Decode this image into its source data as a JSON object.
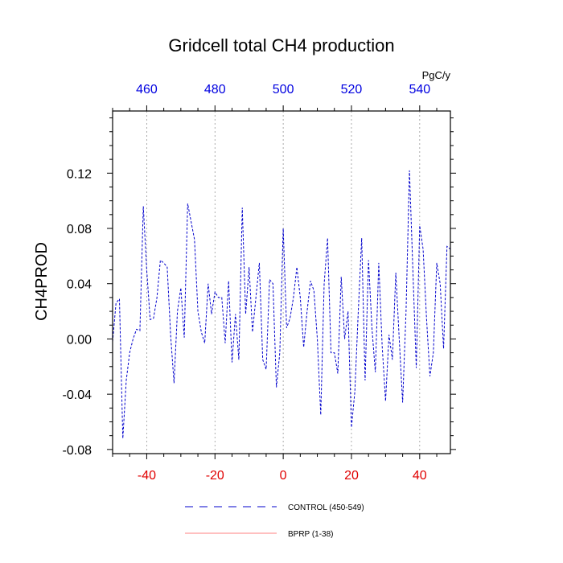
{
  "chart_data": {
    "type": "line",
    "title": "Gridcell total CH4 production",
    "ylabel": "CH4PROD",
    "xlabel": "",
    "top_axis_unit": "PgC/y",
    "xlim": [
      -50,
      49
    ],
    "ylim": [
      -0.083,
      0.165
    ],
    "bottom_ticks": [
      -40,
      -20,
      0,
      20,
      40
    ],
    "top_ticks": [
      460,
      480,
      500,
      520,
      540
    ],
    "top_tick_positions": [
      -40,
      -20,
      0,
      20,
      40
    ],
    "y_ticks": [
      -0.08,
      -0.04,
      0.0,
      0.04,
      0.08,
      0.12
    ],
    "y_tick_labels": [
      "-0.08",
      "-0.04",
      "0.00",
      "0.04",
      "0.08",
      "0.12"
    ],
    "grid": "vertical-dotted",
    "legend_placement": "bottom-center",
    "colors": {
      "bottom_ticks": "#e00000",
      "top_ticks": "#0000e0",
      "control": "#0000cc",
      "bprp": "#ff8080"
    },
    "series": [
      {
        "name": "CONTROL (450-549)",
        "style": "dashed",
        "color": "#0000cc",
        "x": [
          -50,
          -49,
          -48,
          -47,
          -46,
          -45,
          -44,
          -43,
          -42,
          -41,
          -40,
          -39,
          -38,
          -37,
          -36,
          -35,
          -34,
          -33,
          -32,
          -31,
          -30,
          -29,
          -28,
          -27,
          -26,
          -25,
          -24,
          -23,
          -22,
          -21,
          -20,
          -19,
          -18,
          -17,
          -16,
          -15,
          -14,
          -13,
          -12,
          -11,
          -10,
          -9,
          -8,
          -7,
          -6,
          -5,
          -4,
          -3,
          -2,
          -1,
          0,
          1,
          2,
          3,
          4,
          5,
          6,
          7,
          8,
          9,
          10,
          11,
          12,
          13,
          14,
          15,
          16,
          17,
          18,
          19,
          20,
          21,
          22,
          23,
          24,
          25,
          26,
          27,
          28,
          29,
          30,
          31,
          32,
          33,
          34,
          35,
          36,
          37,
          38,
          39,
          40,
          41,
          42,
          43,
          44,
          45,
          46,
          47,
          48,
          49
        ],
        "values": [
          -0.002,
          0.026,
          0.029,
          -0.072,
          -0.03,
          -0.01,
          0.0,
          0.007,
          0.006,
          0.096,
          0.05,
          0.014,
          0.015,
          0.03,
          0.057,
          0.055,
          0.052,
          0.003,
          -0.032,
          0.02,
          0.037,
          0.001,
          0.098,
          0.085,
          0.072,
          0.02,
          0.005,
          -0.003,
          0.04,
          0.018,
          0.034,
          0.03,
          0.03,
          -0.003,
          0.042,
          -0.017,
          0.018,
          -0.015,
          0.095,
          0.018,
          0.052,
          0.005,
          0.03,
          0.055,
          -0.015,
          -0.022,
          0.043,
          0.04,
          -0.035,
          -0.01,
          0.08,
          0.008,
          0.015,
          0.03,
          0.052,
          0.03,
          -0.006,
          0.02,
          0.042,
          0.035,
          0.0,
          -0.055,
          0.04,
          0.073,
          -0.01,
          -0.01,
          -0.025,
          0.045,
          0.0,
          0.02,
          -0.064,
          -0.038,
          0.02,
          0.073,
          -0.03,
          0.057,
          0.008,
          -0.024,
          0.055,
          -0.005,
          -0.045,
          0.003,
          -0.015,
          0.048,
          0.0,
          -0.046,
          0.02,
          0.122,
          0.05,
          -0.021,
          0.082,
          0.065,
          0.015,
          -0.027,
          -0.01,
          0.055,
          0.04,
          -0.007,
          0.067,
          0.065
        ]
      },
      {
        "name": "BPRP (1-38)",
        "style": "solid",
        "color": "#ff8080",
        "x": [],
        "values": []
      }
    ]
  }
}
